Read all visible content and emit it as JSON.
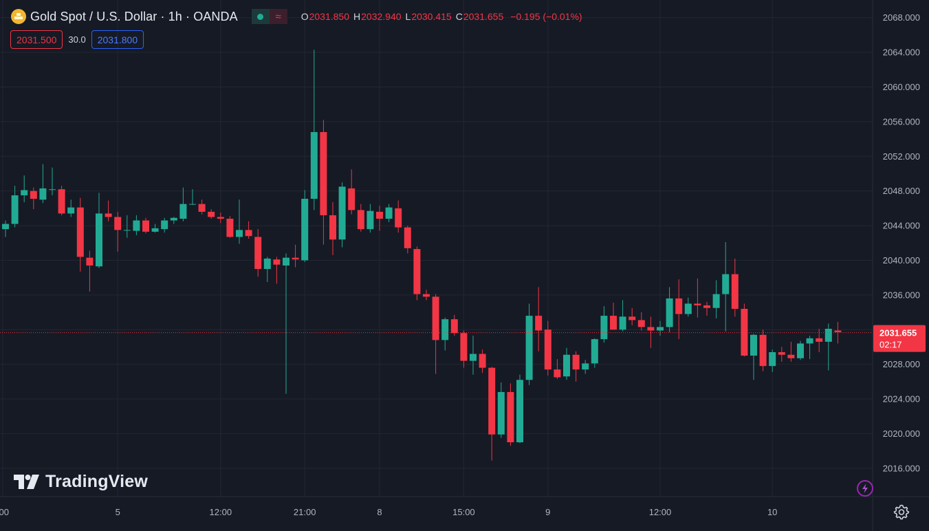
{
  "header": {
    "symbol_title": "Gold Spot / U.S. Dollar · 1h · OANDA",
    "logo_icon": "gold-bars-icon",
    "market_status_icon": "market-open-dot-icon",
    "data_feed_icon": "delayed-wave-icon",
    "ohlc": {
      "o_label": "O",
      "o_value": "2031.850",
      "h_label": "H",
      "h_value": "2032.940",
      "l_label": "L",
      "l_value": "2030.415",
      "c_label": "C",
      "c_value": "2031.655",
      "change": "−0.195 (−0.01%)"
    }
  },
  "trade": {
    "sell_price": "2031.500",
    "spread": "30.0",
    "buy_price": "2031.800"
  },
  "branding": {
    "wordmark": "TradingView"
  },
  "colors": {
    "background": "#161a25",
    "up": "#22ab94",
    "down": "#f23645",
    "grid": "#232733",
    "axis_text": "#b2b5be"
  },
  "chart_data": {
    "type": "candlestick",
    "interval": "1h",
    "ylim": [
      2013.0,
      2070.2
    ],
    "y_ticks": [
      "2016.000",
      "2020.000",
      "2024.000",
      "2028.000",
      "2032.000",
      "2036.000",
      "2040.000",
      "2044.000",
      "2048.000",
      "2052.000",
      "2056.000",
      "2060.000",
      "2064.000",
      "2068.000"
    ],
    "x_labels": [
      {
        "label": ":00",
        "index": -0.3
      },
      {
        "label": "5",
        "index": 12
      },
      {
        "label": "12:00",
        "index": 23
      },
      {
        "label": "21:00",
        "index": 32
      },
      {
        "label": "8",
        "index": 40
      },
      {
        "label": "15:00",
        "index": 49
      },
      {
        "label": "9",
        "index": 58
      },
      {
        "label": "12:00",
        "index": 70
      },
      {
        "label": "10",
        "index": 82
      }
    ],
    "last_price": {
      "value": 2031.655,
      "label": "2031.655",
      "countdown": "02:17"
    },
    "candles": [
      {
        "o": 2043.6,
        "h": 2044.6,
        "l": 2042.7,
        "c": 2044.2
      },
      {
        "o": 2044.2,
        "h": 2048.6,
        "l": 2043.8,
        "c": 2047.5
      },
      {
        "o": 2047.5,
        "h": 2049.8,
        "l": 2046.7,
        "c": 2048.1
      },
      {
        "o": 2048.0,
        "h": 2048.4,
        "l": 2045.9,
        "c": 2047.1
      },
      {
        "o": 2047.0,
        "h": 2051.1,
        "l": 2046.6,
        "c": 2048.3
      },
      {
        "o": 2048.2,
        "h": 2050.7,
        "l": 2047.5,
        "c": 2048.2
      },
      {
        "o": 2048.2,
        "h": 2048.6,
        "l": 2045.2,
        "c": 2045.4
      },
      {
        "o": 2045.4,
        "h": 2047.0,
        "l": 2045.0,
        "c": 2046.1
      },
      {
        "o": 2046.1,
        "h": 2047.2,
        "l": 2038.7,
        "c": 2040.4
      },
      {
        "o": 2040.3,
        "h": 2041.1,
        "l": 2036.4,
        "c": 2039.4
      },
      {
        "o": 2039.3,
        "h": 2047.8,
        "l": 2039.1,
        "c": 2045.4
      },
      {
        "o": 2045.4,
        "h": 2046.9,
        "l": 2044.5,
        "c": 2045.0
      },
      {
        "o": 2045.0,
        "h": 2045.6,
        "l": 2041.0,
        "c": 2043.5
      },
      {
        "o": 2043.5,
        "h": 2045.2,
        "l": 2042.6,
        "c": 2043.5
      },
      {
        "o": 2043.4,
        "h": 2045.2,
        "l": 2042.9,
        "c": 2044.6
      },
      {
        "o": 2044.6,
        "h": 2044.9,
        "l": 2043.1,
        "c": 2043.3
      },
      {
        "o": 2043.3,
        "h": 2044.2,
        "l": 2043.2,
        "c": 2043.7
      },
      {
        "o": 2043.6,
        "h": 2044.9,
        "l": 2043.2,
        "c": 2044.6
      },
      {
        "o": 2044.6,
        "h": 2045.0,
        "l": 2044.2,
        "c": 2044.9
      },
      {
        "o": 2044.8,
        "h": 2048.4,
        "l": 2044.5,
        "c": 2046.5
      },
      {
        "o": 2046.5,
        "h": 2048.2,
        "l": 2046.4,
        "c": 2046.5
      },
      {
        "o": 2046.5,
        "h": 2047.0,
        "l": 2045.3,
        "c": 2045.6
      },
      {
        "o": 2045.6,
        "h": 2045.9,
        "l": 2044.8,
        "c": 2045.0
      },
      {
        "o": 2045.0,
        "h": 2045.5,
        "l": 2044.3,
        "c": 2044.8
      },
      {
        "o": 2044.8,
        "h": 2045.1,
        "l": 2042.6,
        "c": 2042.7
      },
      {
        "o": 2042.7,
        "h": 2047.0,
        "l": 2041.9,
        "c": 2043.5
      },
      {
        "o": 2043.5,
        "h": 2044.5,
        "l": 2042.5,
        "c": 2042.8
      },
      {
        "o": 2042.7,
        "h": 2043.6,
        "l": 2038.1,
        "c": 2039.0
      },
      {
        "o": 2039.0,
        "h": 2040.4,
        "l": 2037.5,
        "c": 2040.2
      },
      {
        "o": 2040.1,
        "h": 2040.4,
        "l": 2037.3,
        "c": 2039.5
      },
      {
        "o": 2039.4,
        "h": 2040.8,
        "l": 2024.6,
        "c": 2040.3
      },
      {
        "o": 2040.3,
        "h": 2041.8,
        "l": 2039.2,
        "c": 2040.1
      },
      {
        "o": 2040.0,
        "h": 2048.1,
        "l": 2039.8,
        "c": 2047.1
      },
      {
        "o": 2047.1,
        "h": 2064.3,
        "l": 2045.8,
        "c": 2054.8
      },
      {
        "o": 2054.8,
        "h": 2056.2,
        "l": 2041.8,
        "c": 2045.2
      },
      {
        "o": 2045.2,
        "h": 2046.7,
        "l": 2040.6,
        "c": 2042.4
      },
      {
        "o": 2042.4,
        "h": 2049.0,
        "l": 2041.5,
        "c": 2048.5
      },
      {
        "o": 2048.3,
        "h": 2050.5,
        "l": 2045.3,
        "c": 2045.8
      },
      {
        "o": 2045.8,
        "h": 2046.5,
        "l": 2043.3,
        "c": 2043.6
      },
      {
        "o": 2043.6,
        "h": 2046.5,
        "l": 2043.2,
        "c": 2045.7
      },
      {
        "o": 2045.6,
        "h": 2046.3,
        "l": 2043.4,
        "c": 2044.8
      },
      {
        "o": 2044.8,
        "h": 2046.5,
        "l": 2044.4,
        "c": 2046.1
      },
      {
        "o": 2046.0,
        "h": 2046.9,
        "l": 2043.2,
        "c": 2043.8
      },
      {
        "o": 2043.8,
        "h": 2044.0,
        "l": 2040.8,
        "c": 2041.4
      },
      {
        "o": 2041.3,
        "h": 2041.6,
        "l": 2035.4,
        "c": 2036.1
      },
      {
        "o": 2036.1,
        "h": 2036.6,
        "l": 2035.4,
        "c": 2035.8
      },
      {
        "o": 2035.8,
        "h": 2036.1,
        "l": 2026.9,
        "c": 2030.8
      },
      {
        "o": 2030.8,
        "h": 2033.4,
        "l": 2029.6,
        "c": 2033.2
      },
      {
        "o": 2033.2,
        "h": 2033.7,
        "l": 2031.3,
        "c": 2031.6
      },
      {
        "o": 2031.6,
        "h": 2031.9,
        "l": 2027.6,
        "c": 2028.4
      },
      {
        "o": 2028.4,
        "h": 2031.3,
        "l": 2026.8,
        "c": 2029.2
      },
      {
        "o": 2029.2,
        "h": 2029.7,
        "l": 2027.0,
        "c": 2027.6
      },
      {
        "o": 2027.6,
        "h": 2027.7,
        "l": 2016.9,
        "c": 2019.9
      },
      {
        "o": 2019.9,
        "h": 2025.9,
        "l": 2019.5,
        "c": 2024.8
      },
      {
        "o": 2024.8,
        "h": 2025.8,
        "l": 2018.6,
        "c": 2019.0
      },
      {
        "o": 2019.0,
        "h": 2026.8,
        "l": 2018.9,
        "c": 2026.2
      },
      {
        "o": 2026.2,
        "h": 2035.0,
        "l": 2025.6,
        "c": 2033.6
      },
      {
        "o": 2033.6,
        "h": 2036.9,
        "l": 2029.5,
        "c": 2031.9
      },
      {
        "o": 2032.0,
        "h": 2033.0,
        "l": 2026.7,
        "c": 2027.4
      },
      {
        "o": 2027.4,
        "h": 2028.6,
        "l": 2026.3,
        "c": 2026.5
      },
      {
        "o": 2026.6,
        "h": 2029.9,
        "l": 2026.2,
        "c": 2029.1
      },
      {
        "o": 2029.1,
        "h": 2029.5,
        "l": 2026.0,
        "c": 2027.4
      },
      {
        "o": 2027.4,
        "h": 2028.5,
        "l": 2026.9,
        "c": 2028.1
      },
      {
        "o": 2028.1,
        "h": 2031.0,
        "l": 2027.6,
        "c": 2030.9
      },
      {
        "o": 2030.9,
        "h": 2034.7,
        "l": 2030.5,
        "c": 2033.6
      },
      {
        "o": 2033.6,
        "h": 2035.1,
        "l": 2032.0,
        "c": 2032.0
      },
      {
        "o": 2032.0,
        "h": 2035.4,
        "l": 2031.8,
        "c": 2033.5
      },
      {
        "o": 2033.5,
        "h": 2034.5,
        "l": 2032.5,
        "c": 2033.1
      },
      {
        "o": 2033.1,
        "h": 2034.0,
        "l": 2031.9,
        "c": 2032.3
      },
      {
        "o": 2032.3,
        "h": 2033.5,
        "l": 2029.9,
        "c": 2031.9
      },
      {
        "o": 2031.9,
        "h": 2033.0,
        "l": 2031.3,
        "c": 2032.3
      },
      {
        "o": 2032.3,
        "h": 2036.9,
        "l": 2031.7,
        "c": 2035.6
      },
      {
        "o": 2035.6,
        "h": 2037.8,
        "l": 2030.9,
        "c": 2033.8
      },
      {
        "o": 2033.8,
        "h": 2035.7,
        "l": 2033.5,
        "c": 2035.0
      },
      {
        "o": 2035.0,
        "h": 2037.9,
        "l": 2033.4,
        "c": 2034.8
      },
      {
        "o": 2034.8,
        "h": 2035.2,
        "l": 2033.6,
        "c": 2034.5
      },
      {
        "o": 2034.5,
        "h": 2037.7,
        "l": 2033.3,
        "c": 2036.1
      },
      {
        "o": 2036.1,
        "h": 2042.1,
        "l": 2031.8,
        "c": 2038.4
      },
      {
        "o": 2038.4,
        "h": 2040.2,
        "l": 2033.5,
        "c": 2034.4
      },
      {
        "o": 2034.4,
        "h": 2035.0,
        "l": 2028.9,
        "c": 2029.0
      },
      {
        "o": 2029.0,
        "h": 2031.5,
        "l": 2026.2,
        "c": 2031.4
      },
      {
        "o": 2031.4,
        "h": 2032.0,
        "l": 2027.2,
        "c": 2027.8
      },
      {
        "o": 2027.8,
        "h": 2029.7,
        "l": 2027.1,
        "c": 2029.4
      },
      {
        "o": 2029.4,
        "h": 2030.0,
        "l": 2028.3,
        "c": 2029.1
      },
      {
        "o": 2029.1,
        "h": 2030.6,
        "l": 2028.3,
        "c": 2028.7
      },
      {
        "o": 2028.7,
        "h": 2030.7,
        "l": 2028.5,
        "c": 2030.4
      },
      {
        "o": 2030.4,
        "h": 2031.3,
        "l": 2028.6,
        "c": 2031.0
      },
      {
        "o": 2031.0,
        "h": 2032.1,
        "l": 2029.4,
        "c": 2030.6
      },
      {
        "o": 2030.6,
        "h": 2032.7,
        "l": 2027.3,
        "c": 2032.1
      },
      {
        "o": 2031.9,
        "h": 2032.9,
        "l": 2030.4,
        "c": 2031.7
      }
    ]
  }
}
